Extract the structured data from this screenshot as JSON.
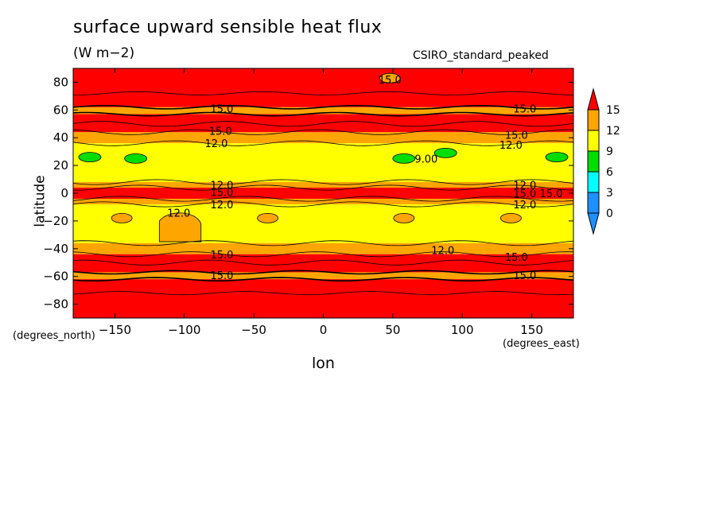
{
  "chart_data": {
    "type": "heatmap",
    "title": "surface upward sensible heat flux",
    "units": "(W m−2)",
    "model_label": "CSIRO_standard_peaked",
    "xlabel": "lon",
    "ylabel": "latitude",
    "x_unit": "(degrees_east)",
    "y_unit": "(degrees_north)",
    "xlim": [
      -180,
      180
    ],
    "ylim": [
      -90,
      90
    ],
    "x_ticks": [
      -150,
      -100,
      -50,
      0,
      50,
      100,
      150
    ],
    "x_tick_labels": [
      "−150",
      "−100",
      "−50",
      "0",
      "50",
      "100",
      "150"
    ],
    "y_ticks": [
      80,
      60,
      40,
      20,
      0,
      -20,
      -40,
      -60,
      -80
    ],
    "y_tick_labels": [
      "80",
      "60",
      "40",
      "20",
      "0",
      "−20",
      "−40",
      "−60",
      "−80"
    ],
    "colorbar": {
      "levels": [
        0,
        3,
        6,
        9,
        12,
        15
      ],
      "labels": [
        "0",
        "3",
        "6",
        "9",
        "12",
        "15"
      ],
      "colors": {
        "below": "#1e90ff",
        "0-3": "#1e90ff",
        "3-6": "#00ffff",
        "6-9": "#00dd00",
        "9-12": "#ffff00",
        "12-15": "#ffa500",
        "above": "#ff0000"
      }
    },
    "latitude_bands": [
      {
        "lat_from": 90,
        "lat_to": 62,
        "value_range": ">15"
      },
      {
        "lat_from": 62,
        "lat_to": 57,
        "value_range": "12-15"
      },
      {
        "lat_from": 57,
        "lat_to": 44,
        "value_range": ">15"
      },
      {
        "lat_from": 44,
        "lat_to": 36,
        "value_range": "12-15"
      },
      {
        "lat_from": 36,
        "lat_to": 8,
        "value_range": "9-12"
      },
      {
        "lat_from": 8,
        "lat_to": 4,
        "value_range": "12-15"
      },
      {
        "lat_from": 4,
        "lat_to": -4,
        "value_range": ">15"
      },
      {
        "lat_from": -4,
        "lat_to": -8,
        "value_range": "12-15"
      },
      {
        "lat_from": -8,
        "lat_to": -36,
        "value_range": "9-12"
      },
      {
        "lat_from": -36,
        "lat_to": -44,
        "value_range": "12-15"
      },
      {
        "lat_from": -44,
        "lat_to": -57,
        "value_range": ">15"
      },
      {
        "lat_from": -57,
        "lat_to": -62,
        "value_range": "12-15"
      },
      {
        "lat_from": -62,
        "lat_to": -90,
        "value_range": ">15"
      }
    ],
    "patches": [
      {
        "lon": 48,
        "lat": 83,
        "value_range": "12-15"
      },
      {
        "lon": -168,
        "lat": 26,
        "value_range": "6-9"
      },
      {
        "lon": -135,
        "lat": 25,
        "value_range": "6-9"
      },
      {
        "lon": 58,
        "lat": 25,
        "value_range": "6-9"
      },
      {
        "lon": 88,
        "lat": 29,
        "value_range": "6-9"
      },
      {
        "lon": 168,
        "lat": 26,
        "value_range": "6-9"
      },
      {
        "lon": -100,
        "lat": -27,
        "value_range": "12-15"
      },
      {
        "lon": -145,
        "lat": -18,
        "value_range": "12-15"
      },
      {
        "lon": -40,
        "lat": -18,
        "value_range": "12-15"
      },
      {
        "lon": 58,
        "lat": -18,
        "value_range": "12-15"
      },
      {
        "lon": 135,
        "lat": -18,
        "value_range": "12-15"
      }
    ],
    "contour_labels": [
      {
        "text": "15.0",
        "lon": 48,
        "lat": 82
      },
      {
        "text": "15.0",
        "lon": -73,
        "lat": 61
      },
      {
        "text": "15.0",
        "lon": 145,
        "lat": 61
      },
      {
        "text": "15.0",
        "lon": -74,
        "lat": 45
      },
      {
        "text": "12.0",
        "lon": -77,
        "lat": 36
      },
      {
        "text": "15.0",
        "lon": 139,
        "lat": 42
      },
      {
        "text": "12.0",
        "lon": 135,
        "lat": 35
      },
      {
        "text": "9.00",
        "lon": 74,
        "lat": 25
      },
      {
        "text": "12.0",
        "lon": -73,
        "lat": 6
      },
      {
        "text": "15.0",
        "lon": -73,
        "lat": 1
      },
      {
        "text": "12.0",
        "lon": -73,
        "lat": -8
      },
      {
        "text": "12.0",
        "lon": 145,
        "lat": 6
      },
      {
        "text": "15.0",
        "lon": 145,
        "lat": 0
      },
      {
        "text": "15.0",
        "lon": 164,
        "lat": 0
      },
      {
        "text": "12.0",
        "lon": 145,
        "lat": -8
      },
      {
        "text": "12.0",
        "lon": -104,
        "lat": -14
      },
      {
        "text": "15.0",
        "lon": -73,
        "lat": -44
      },
      {
        "text": "12.0",
        "lon": 86,
        "lat": -41
      },
      {
        "text": "15.0",
        "lon": 139,
        "lat": -46
      },
      {
        "text": "15.0",
        "lon": -73,
        "lat": -59
      },
      {
        "text": "15.0",
        "lon": 145,
        "lat": -59
      }
    ]
  }
}
